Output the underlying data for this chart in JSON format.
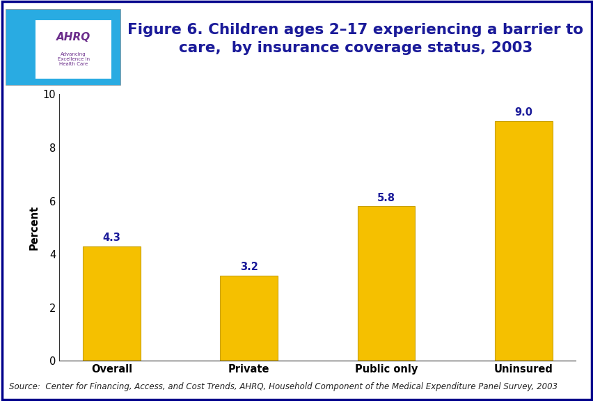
{
  "categories": [
    "Overall",
    "Private",
    "Public only",
    "Uninsured"
  ],
  "values": [
    4.3,
    3.2,
    5.8,
    9.0
  ],
  "bar_color": "#F5C000",
  "bar_edge_color": "#C8A000",
  "ylabel": "Percent",
  "ylim": [
    0,
    10
  ],
  "yticks": [
    0,
    2,
    4,
    6,
    8,
    10
  ],
  "title_line1": "Figure 6. Children ages 2–17 experiencing a barrier to",
  "title_line2": "care,  by insurance coverage status, 2003",
  "title_color": "#1A1A99",
  "title_fontsize": 15.5,
  "label_fontsize": 10.5,
  "value_label_fontsize": 10.5,
  "axis_label_fontsize": 10.5,
  "source_text": "Source:  Center for Financing, Access, and Cost Trends, AHRQ, Household Component of the Medical Expenditure Panel Survey, 2003",
  "source_fontsize": 8.5,
  "page_background": "#FFFFFF",
  "chart_background": "#FFFFFF",
  "border_color": "#00008B",
  "thick_line_color": "#00008B",
  "tick_label_color": "#000000",
  "value_label_color": "#1A1A99",
  "ylabel_color": "#000000",
  "logo_bg_color": "#29ABE2",
  "bar_width": 0.42
}
